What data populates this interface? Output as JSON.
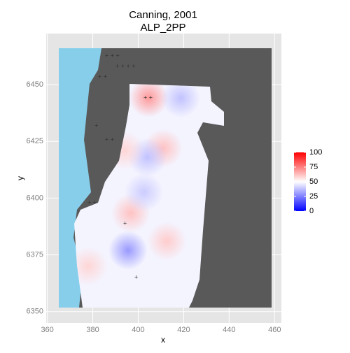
{
  "chart_data": {
    "type": "heatmap",
    "title": "Canning, 2001",
    "subtitle": "ALP_2PP",
    "x_label": "x",
    "y_label": "y",
    "xlim": [
      359.5,
      463
    ],
    "ylim": [
      6345,
      6472.5
    ],
    "xticks": [
      360,
      380,
      400,
      420,
      440,
      460
    ],
    "yticks": [
      6350,
      6375,
      6400,
      6425,
      6450
    ],
    "grid": true,
    "hotspots": {
      "x": [
        404.6,
        411,
        396.7,
        412.6,
        378,
        395.5,
        404,
        418.7,
        402.5,
        394
      ],
      "y": [
        6444.2,
        6422,
        6393.4,
        6381,
        6370,
        6377,
        6418,
        6444,
        6402.6,
        6421
      ],
      "values": [
        70,
        62,
        62,
        60,
        58,
        30,
        38,
        38,
        40,
        58
      ]
    },
    "legend": {
      "limits": [
        0,
        100
      ],
      "ticks": [
        0,
        25,
        50,
        75,
        100
      ],
      "low": "#0000ff",
      "mid": "#ffffff",
      "high": "#ff0000",
      "midpoint": 50
    }
  }
}
